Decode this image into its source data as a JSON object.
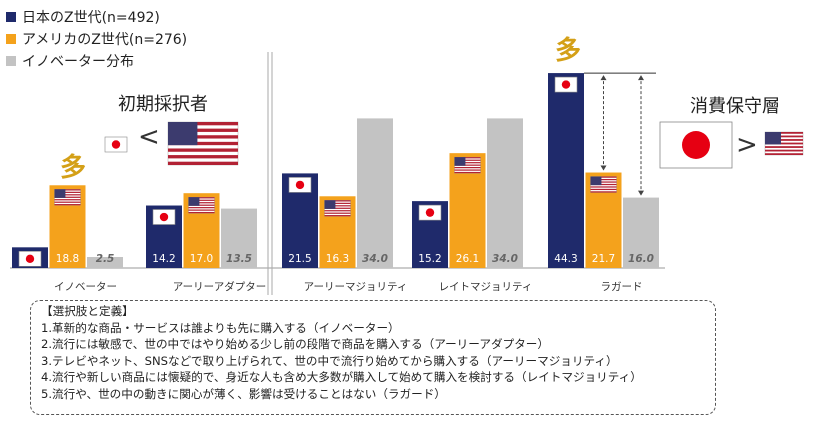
{
  "chart_data": {
    "type": "bar",
    "categories": [
      "イノベーター",
      "アーリーアダプター",
      "アーリーマジョリティ",
      "レイトマジョリティ",
      "ラガード"
    ],
    "series": [
      {
        "name": "日本のZ世代(n=492)",
        "values": [
          4.7,
          14.2,
          21.5,
          15.2,
          44.3
        ],
        "labels": [
          "4.7",
          "14.2",
          "21.5",
          "15.2",
          "44.3"
        ],
        "color": "#1f2a6b"
      },
      {
        "name": "アメリカのZ世代(n=276)",
        "values": [
          18.8,
          17.0,
          16.3,
          26.1,
          21.7
        ],
        "labels": [
          "18.8",
          "17.0",
          "16.3",
          "26.1",
          "21.7"
        ],
        "color": "#f4a21c"
      },
      {
        "name": "イノベーター分布",
        "values": [
          2.5,
          13.5,
          34.0,
          34.0,
          16.0
        ],
        "labels": [
          "2.5",
          "13.5",
          "34.0",
          "34.0",
          "16.0"
        ],
        "color": "#c3c3c3"
      }
    ],
    "ylim": [
      0,
      45
    ],
    "grid": false,
    "legend_position": "top-left"
  },
  "callouts": {
    "early_adopters_title": "初期採択者",
    "conservative_title": "消費保守層",
    "many_mark": "多",
    "less_than": "<",
    "greater_than": ">"
  },
  "definitions": {
    "title": "【選択肢と定義】",
    "lines": [
      "1.革新的な商品・サービスは誰よりも先に購入する（イノベーター）",
      "2.流行には敏感で、世の中ではやり始める少し前の段階で商品を購入する（アーリーアダプター）",
      "3.テレビやネット、SNSなどで取り上げられて、世の中で流行り始めてから購入する（アーリーマジョリティ）",
      "4.流行や新しい商品には懐疑的で、身近な人も含め大多数が購入して始めて購入を検討する（レイトマジョリティ）",
      "5.流行や、世の中の動きに関心が薄く、影響は受けることはない（ラガード）"
    ]
  }
}
